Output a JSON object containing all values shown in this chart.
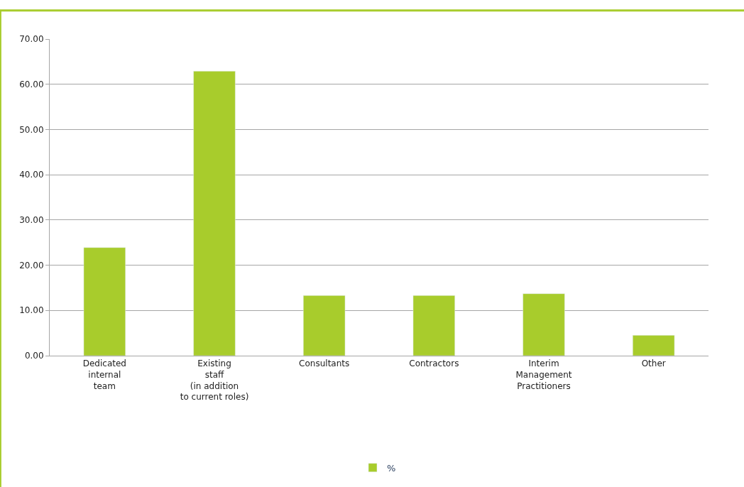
{
  "chart_data": {
    "type": "bar",
    "categories": [
      "Dedicated\ninternal\nteam",
      "Existing\nstaff\n(in addition\nto current roles)",
      "Consultants",
      "Contractors",
      "Interim\nManagement\nPractitioners",
      "Other"
    ],
    "series": [
      {
        "name": "%",
        "color": "#a8cc2c",
        "values": [
          23.9,
          62.9,
          13.3,
          13.3,
          13.7,
          4.5
        ]
      }
    ],
    "ylim": [
      0,
      70
    ],
    "yticks": [
      {
        "value": 0,
        "label": "0.00"
      },
      {
        "value": 10,
        "label": "10.00"
      },
      {
        "value": 20,
        "label": "20.00"
      },
      {
        "value": 30,
        "label": "30.00"
      },
      {
        "value": 40,
        "label": "40.00"
      },
      {
        "value": 50,
        "label": "50.00"
      },
      {
        "value": 60,
        "label": "60.00"
      },
      {
        "value": 70,
        "label": "70.00"
      }
    ],
    "grid": "y",
    "legend": "bottom"
  }
}
